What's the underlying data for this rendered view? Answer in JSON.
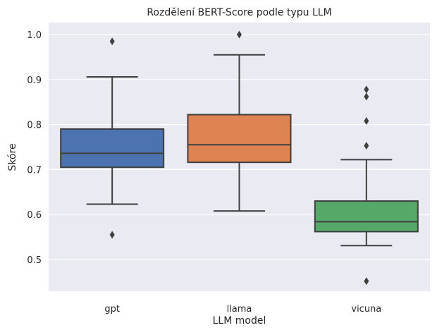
{
  "chart_data": {
    "type": "box",
    "title": "Rozdělení BERT-Score podle typu LLM",
    "xlabel": "LLM model",
    "ylabel": "Skóre",
    "ylim": [
      0.43,
      1.03
    ],
    "yticks": [
      "0.5",
      "0.6",
      "0.7",
      "0.8",
      "0.9",
      "1.0"
    ],
    "grid": true,
    "categories": [
      "gpt",
      "llama",
      "vicuna"
    ],
    "series": [
      {
        "category": "gpt",
        "color": "#4c72b0",
        "whisker_low": 0.623,
        "q1": 0.705,
        "median": 0.736,
        "q3": 0.79,
        "whisker_high": 0.906,
        "outliers": [
          0.985,
          0.555
        ]
      },
      {
        "category": "llama",
        "color": "#dd8452",
        "whisker_low": 0.608,
        "q1": 0.716,
        "median": 0.755,
        "q3": 0.822,
        "whisker_high": 0.955,
        "outliers": [
          1.0
        ]
      },
      {
        "category": "vicuna",
        "color": "#55a868",
        "whisker_low": 0.531,
        "q1": 0.562,
        "median": 0.584,
        "q3": 0.63,
        "whisker_high": 0.722,
        "outliers": [
          0.878,
          0.862,
          0.808,
          0.753,
          0.452
        ]
      }
    ]
  }
}
